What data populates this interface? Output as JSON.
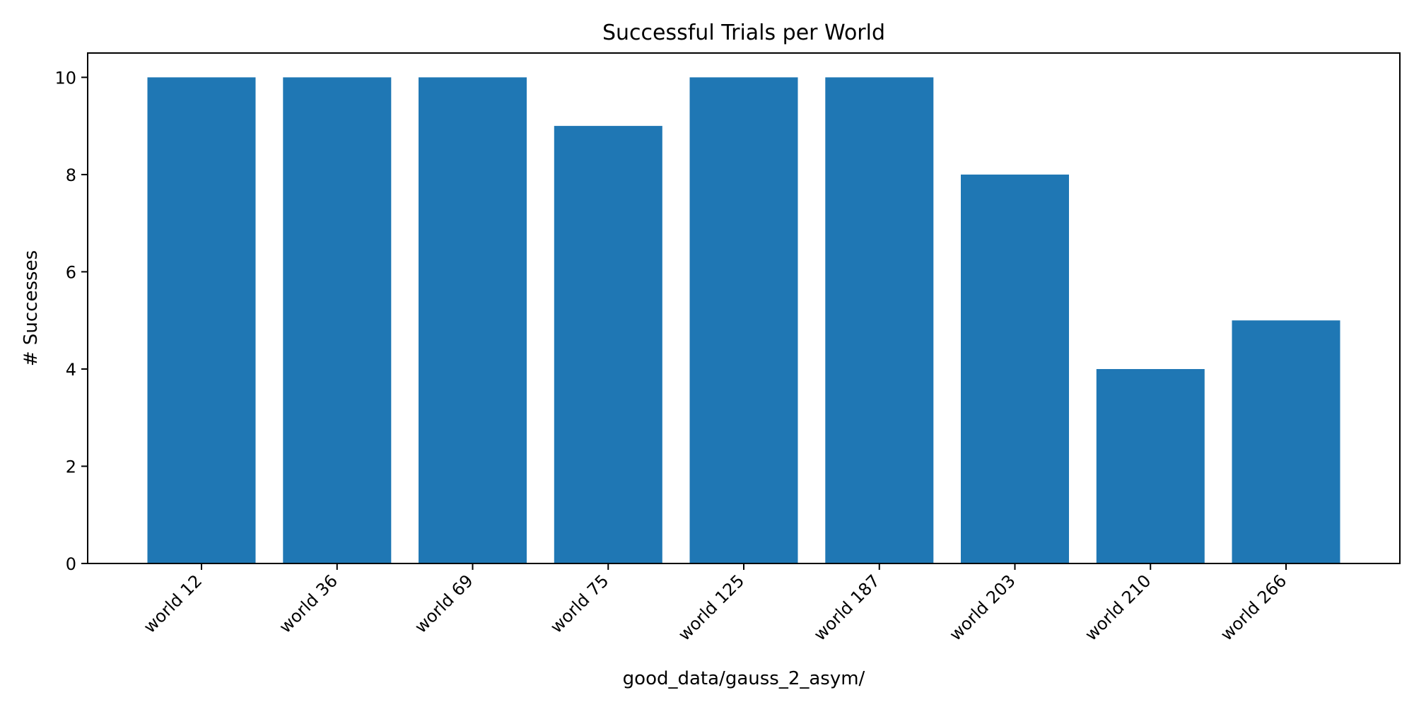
{
  "colors": {
    "bar": "#1f77b4",
    "axis": "#000000",
    "background": "#ffffff"
  },
  "chart_data": {
    "type": "bar",
    "title": "Successful Trials per World",
    "xlabel": "good_data/gauss_2_asym/",
    "ylabel": "# Successes",
    "categories": [
      "world 12",
      "world 36",
      "world 69",
      "world 75",
      "world 125",
      "world 187",
      "world 203",
      "world 210",
      "world 266"
    ],
    "values": [
      10,
      10,
      10,
      9,
      10,
      10,
      8,
      4,
      5
    ],
    "ylim": [
      0,
      10.5
    ],
    "yticks": [
      0,
      2,
      4,
      6,
      8,
      10
    ],
    "grid": false,
    "legend": "none"
  }
}
